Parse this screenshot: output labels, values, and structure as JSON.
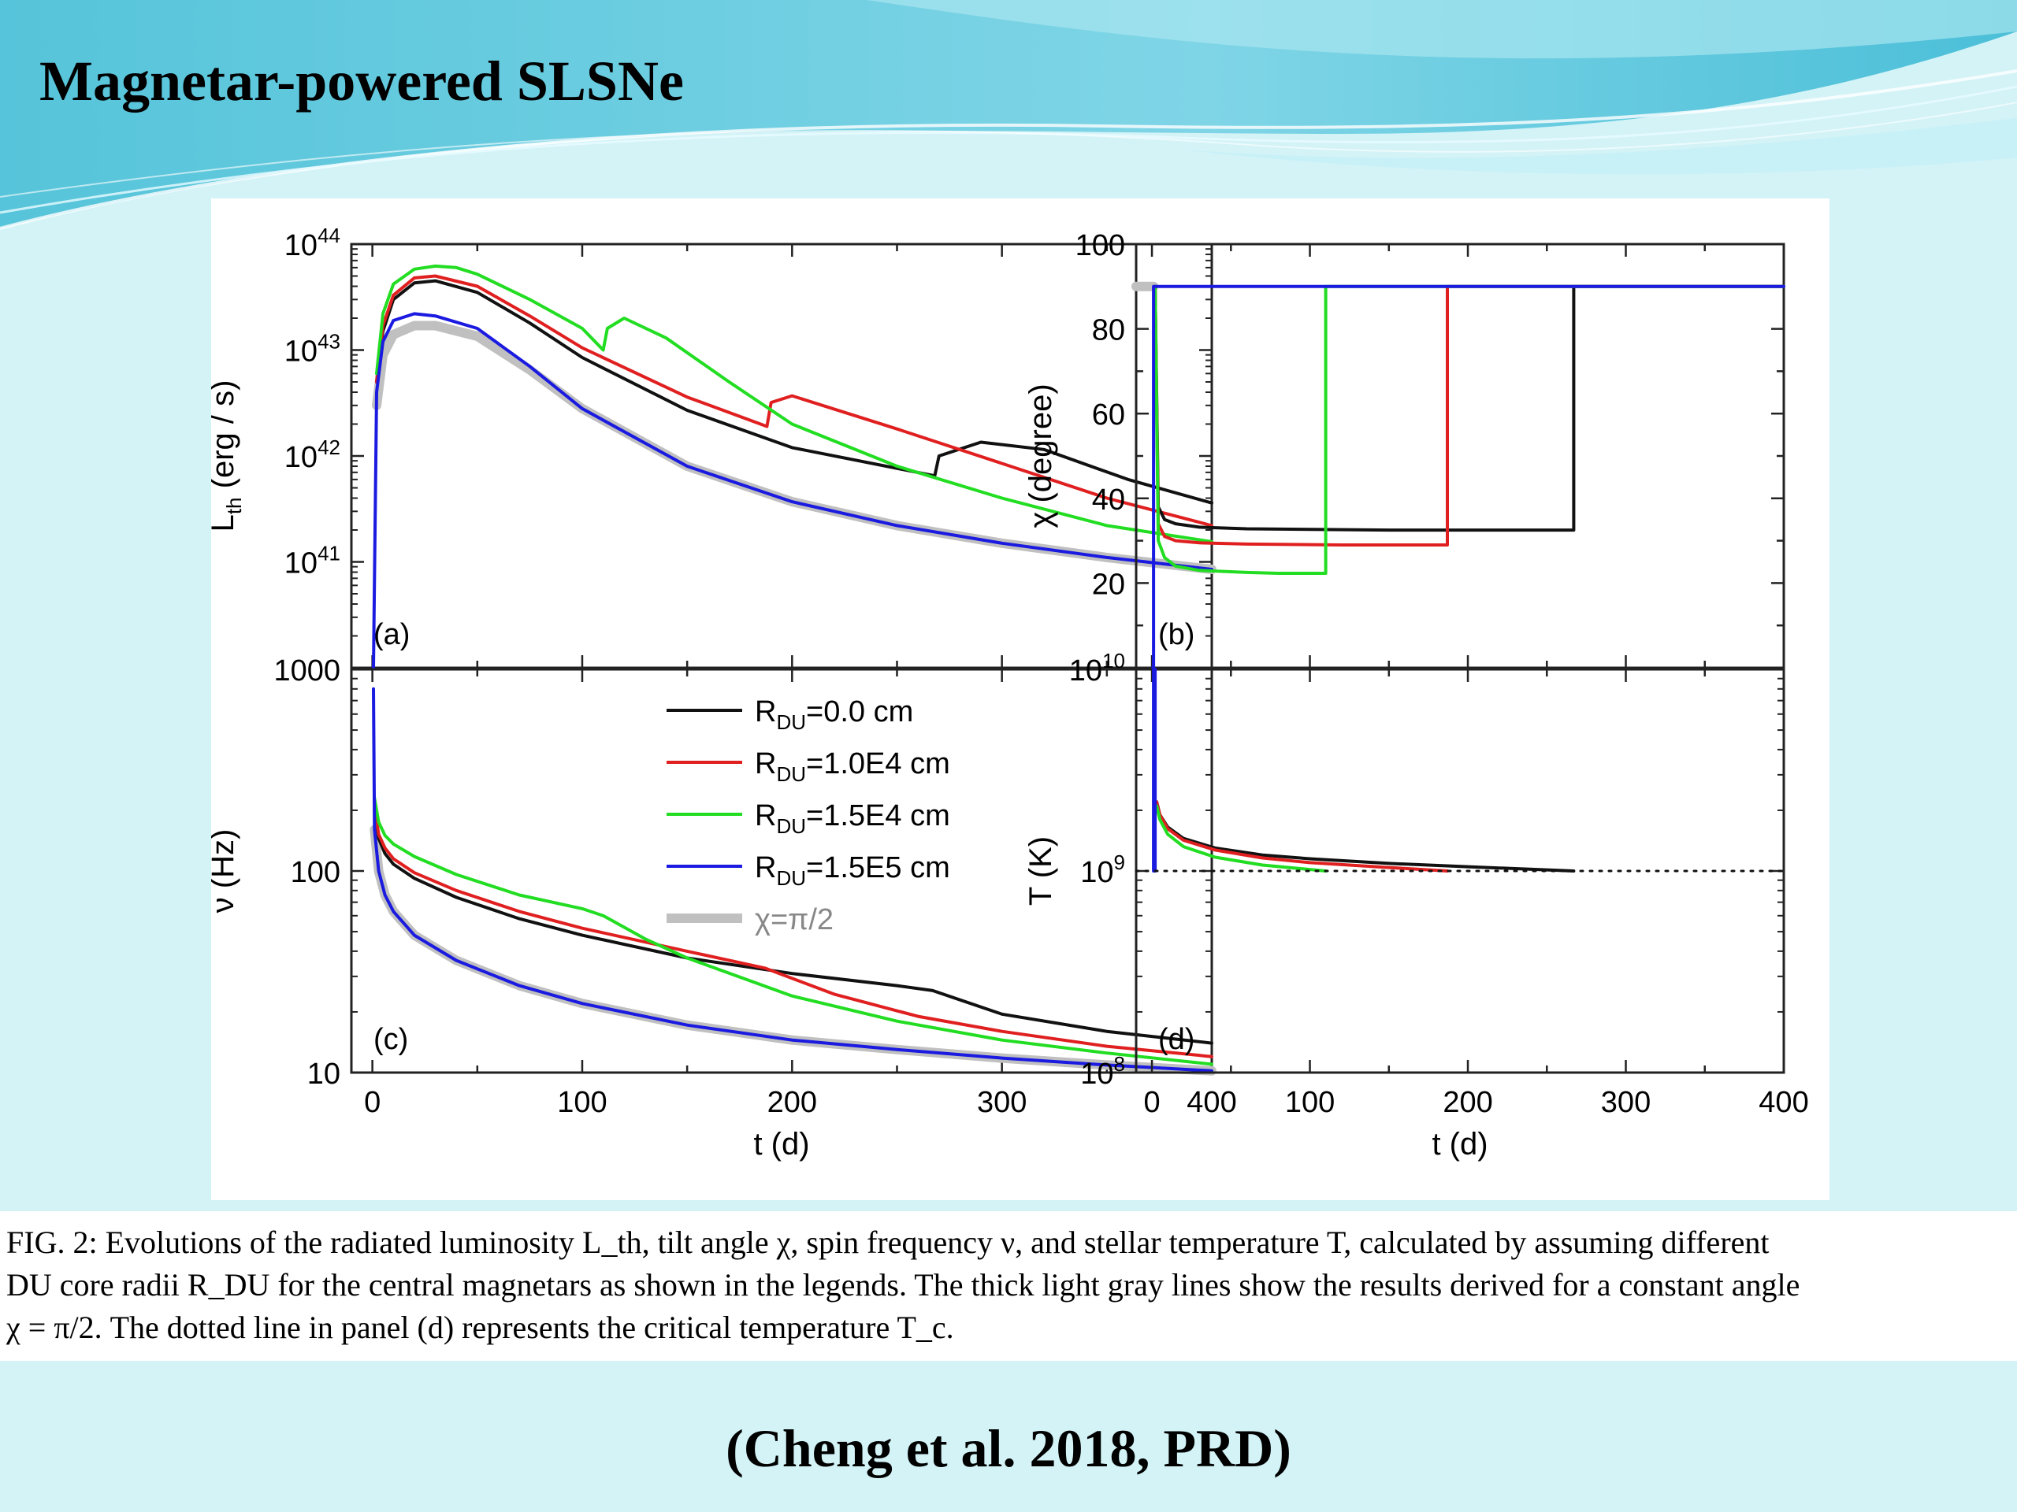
{
  "slide": {
    "title": "Magnetar-powered SLSNe",
    "citation": "(Cheng et al. 2018, PRD)"
  },
  "caption": {
    "lines": [
      "FIG. 2: Evolutions of the radiated luminosity L_th, tilt angle χ, spin frequency ν, and stellar temperature T, calculated by assuming different",
      "DU core radii R_DU for the central magnetars as shown in the legends. The thick light gray lines show the results derived for a constant angle",
      "χ = π/2. The dotted line in panel (d) represents the critical temperature T_c."
    ]
  },
  "colors": {
    "R0": "#111111",
    "R1": "#e02020",
    "R2": "#22dd22",
    "R3": "#1a1ae0",
    "gray": "#c0c0c0",
    "banner": "#5ec8dc"
  },
  "chart_data": [
    {
      "panel": "(a)",
      "type": "line",
      "ylabel": "L_th (erg / s)",
      "xlabel": "",
      "xlim": [
        -10,
        400
      ],
      "yscale": "log",
      "ylim": [
        1e+40,
        1e+44
      ],
      "yticks": [
        "10^44",
        "10^43",
        "10^42",
        "10^41"
      ],
      "series": [
        {
          "name": "R_DU=0.0 cm",
          "color": "R0",
          "x": [
            2,
            5,
            10,
            20,
            30,
            50,
            75,
            100,
            150,
            200,
            268,
            270,
            290,
            320,
            360,
            400
          ],
          "y": [
            5e+42,
            1.5e+43,
            3e+43,
            4.3e+43,
            4.5e+43,
            3.5e+43,
            1.8e+43,
            8.5e+42,
            2.7e+42,
            1.2e+42,
            6.5e+41,
            1e+42,
            1.35e+42,
            1.15e+42,
            6e+41,
            3.6e+41
          ]
        },
        {
          "name": "R_DU=1.0E4 cm",
          "color": "R1",
          "x": [
            2,
            5,
            10,
            20,
            30,
            50,
            75,
            100,
            150,
            188,
            190,
            200,
            250,
            300,
            350,
            400
          ],
          "y": [
            5e+42,
            1.7e+43,
            3.3e+43,
            4.8e+43,
            5e+43,
            4e+43,
            2.1e+43,
            1.05e+43,
            3.6e+42,
            1.9e+42,
            3.2e+42,
            3.7e+42,
            1.8e+42,
            8.5e+41,
            4e+41,
            2.2e+41
          ]
        },
        {
          "name": "R_DU=1.5E4 cm",
          "color": "R2",
          "x": [
            2,
            5,
            10,
            20,
            30,
            40,
            50,
            75,
            100,
            110,
            112,
            120,
            140,
            170,
            200,
            250,
            300,
            350,
            400
          ],
          "y": [
            6e+42,
            2.2e+43,
            4.2e+43,
            5.8e+43,
            6.2e+43,
            6e+43,
            5.2e+43,
            3e+43,
            1.6e+43,
            1e+43,
            1.6e+43,
            2e+43,
            1.3e+43,
            5e+42,
            2e+42,
            8e+41,
            4e+41,
            2.2e+41,
            1.55e+41
          ]
        },
        {
          "name": "R_DU=1.5E5 cm",
          "color": "R3",
          "x": [
            0.5,
            2,
            5,
            10,
            20,
            30,
            50,
            75,
            100,
            150,
            200,
            250,
            300,
            350,
            400
          ],
          "y": [
            1e+40,
            4e+42,
            1.2e+43,
            1.9e+43,
            2.2e+43,
            2.1e+43,
            1.6e+43,
            7e+42,
            2.8e+42,
            8e+41,
            3.7e+41,
            2.2e+41,
            1.5e+41,
            1.1e+41,
            8.5e+40
          ]
        },
        {
          "name": "χ=π/2",
          "color": "gray",
          "x": [
            2,
            5,
            10,
            20,
            30,
            50,
            75,
            100,
            150,
            200,
            250,
            300,
            350,
            400
          ],
          "y": [
            3e+42,
            9e+42,
            1.4e+43,
            1.7e+43,
            1.7e+43,
            1.35e+43,
            6.5e+42,
            2.8e+42,
            8e+41,
            3.7e+41,
            2.2e+41,
            1.5e+41,
            1.1e+41,
            8.5e+40
          ]
        }
      ]
    },
    {
      "panel": "(b)",
      "type": "line",
      "ylabel": "χ (degree)",
      "xlabel": "",
      "xlim": [
        -10,
        400
      ],
      "ylim": [
        0,
        100
      ],
      "yticks": [
        20,
        40,
        60,
        80,
        100
      ],
      "series": [
        {
          "name": "R_DU=0.0 cm",
          "color": "R0",
          "x": [
            2,
            4,
            8,
            15,
            30,
            60,
            150,
            267,
            267,
            400
          ],
          "y": [
            90,
            38,
            35,
            34,
            33.2,
            32.8,
            32.5,
            32.5,
            90,
            90
          ]
        },
        {
          "name": "R_DU=1.0E4 cm",
          "color": "R1",
          "x": [
            2,
            4,
            8,
            15,
            30,
            60,
            120,
            187,
            187,
            400
          ],
          "y": [
            90,
            34,
            31,
            30,
            29.5,
            29.2,
            29,
            29,
            90,
            90
          ]
        },
        {
          "name": "R_DU=1.5E4 cm",
          "color": "R2",
          "x": [
            2,
            4,
            8,
            15,
            30,
            60,
            80,
            110,
            110,
            400
          ],
          "y": [
            90,
            30,
            26,
            24,
            23,
            22.5,
            22.3,
            22.3,
            90,
            90
          ]
        },
        {
          "name": "R_DU=1.5E5 cm",
          "color": "R3",
          "x": [
            0.5,
            1,
            1,
            400
          ],
          "y": [
            0,
            0,
            90,
            90
          ]
        },
        {
          "name": "χ=π/2",
          "color": "gray",
          "x": [
            -10,
            1
          ],
          "y": [
            90,
            90
          ]
        }
      ]
    },
    {
      "panel": "(c)",
      "type": "line",
      "ylabel": "ν (Hz)",
      "xlabel": "t (d)",
      "xlim": [
        -10,
        400
      ],
      "xticks": [
        0,
        100,
        200,
        300,
        400
      ],
      "yscale": "log",
      "ylim": [
        10,
        1000
      ],
      "yticks": [
        1000,
        100,
        10
      ],
      "legend": {
        "placement": "top-right",
        "entries": [
          {
            "prefix": "R",
            "sub": "DU",
            "suffix": "=0.0 cm",
            "color": "R0"
          },
          {
            "prefix": "R",
            "sub": "DU",
            "suffix": "=1.0E4 cm",
            "color": "R1"
          },
          {
            "prefix": "R",
            "sub": "DU",
            "suffix": "=1.5E4 cm",
            "color": "R2"
          },
          {
            "prefix": "R",
            "sub": "DU",
            "suffix": "=1.5E5 cm",
            "color": "R3"
          },
          {
            "prefix": "χ=π/2",
            "sub": "",
            "suffix": "",
            "color": "gray"
          }
        ]
      },
      "series": [
        {
          "name": "R_DU=0.0 cm",
          "color": "R0",
          "x": [
            1,
            3,
            6,
            10,
            20,
            40,
            70,
            100,
            150,
            200,
            250,
            267,
            300,
            350,
            400
          ],
          "y": [
            200,
            145,
            122,
            108,
            92,
            74,
            58,
            48,
            37,
            31,
            27,
            25.5,
            19.5,
            16,
            14
          ]
        },
        {
          "name": "R_DU=1.0E4 cm",
          "color": "R1",
          "x": [
            1,
            3,
            6,
            10,
            20,
            40,
            70,
            100,
            150,
            187,
            220,
            260,
            300,
            350,
            400
          ],
          "y": [
            210,
            152,
            130,
            115,
            98,
            80,
            63,
            52,
            40,
            33,
            24.5,
            19,
            16,
            13.5,
            12
          ]
        },
        {
          "name": "R_DU=1.5E4 cm",
          "color": "R2",
          "x": [
            1,
            3,
            6,
            10,
            20,
            40,
            70,
            100,
            110,
            130,
            150,
            200,
            250,
            300,
            350,
            400
          ],
          "y": [
            230,
            175,
            150,
            136,
            118,
            96,
            76,
            65,
            60,
            46,
            37,
            24,
            18,
            14.5,
            12.5,
            11
          ]
        },
        {
          "name": "R_DU=1.5E5 cm",
          "color": "R3",
          "x": [
            0.5,
            1,
            3,
            6,
            10,
            20,
            40,
            70,
            100,
            150,
            200,
            250,
            300,
            350,
            400
          ],
          "y": [
            800,
            160,
            100,
            76,
            63,
            48,
            36,
            27,
            22,
            17.2,
            14.5,
            13,
            11.8,
            10.9,
            10.2
          ]
        },
        {
          "name": "χ=π/2",
          "color": "gray",
          "x": [
            1,
            3,
            6,
            10,
            20,
            40,
            70,
            100,
            150,
            200,
            250,
            300,
            350,
            400
          ],
          "y": [
            160,
            100,
            76,
            63,
            48,
            36,
            27,
            22,
            17.2,
            14.5,
            13,
            11.8,
            10.9,
            10.2
          ]
        }
      ]
    },
    {
      "panel": "(d)",
      "type": "line",
      "ylabel": "T (K)",
      "xlabel": "t (d)",
      "xlim": [
        -10,
        400
      ],
      "xticks": [
        0,
        100,
        200,
        300,
        400
      ],
      "yscale": "log",
      "ylim": [
        100000000.0,
        10000000000.0
      ],
      "yticks": [
        "10^10",
        "10^9",
        "10^8"
      ],
      "series": [
        {
          "name": "R_DU=0.0 cm",
          "color": "R0",
          "x": [
            3,
            5,
            10,
            20,
            40,
            70,
            100,
            150,
            200,
            267
          ],
          "y": [
            2200000000.0,
            1900000000.0,
            1650000000.0,
            1450000000.0,
            1300000000.0,
            1200000000.0,
            1150000000.0,
            1090000000.0,
            1050000000.0,
            1000000000.0
          ]
        },
        {
          "name": "R_DU=1.0E4 cm",
          "color": "R1",
          "x": [
            3,
            5,
            10,
            20,
            40,
            70,
            100,
            150,
            187
          ],
          "y": [
            2200000000.0,
            1900000000.0,
            1620000000.0,
            1420000000.0,
            1270000000.0,
            1160000000.0,
            1100000000.0,
            1040000000.0,
            1000000000.0
          ]
        },
        {
          "name": "R_DU=1.5E4 cm",
          "color": "R2",
          "x": [
            3,
            5,
            10,
            20,
            40,
            70,
            110
          ],
          "y": [
            2100000000.0,
            1800000000.0,
            1520000000.0,
            1320000000.0,
            1170000000.0,
            1070000000.0,
            1000000000.0
          ]
        },
        {
          "name": "R_DU=1.5E5 cm",
          "color": "R3",
          "x": [
            1,
            1,
            2,
            2
          ],
          "y": [
            10000000000.0,
            1000000000.0,
            1000000000.0,
            10000000000.0
          ]
        },
        {
          "name": "T_c",
          "color": "R0",
          "dotted": true,
          "x": [
            -10,
            400
          ],
          "y": [
            1000000000.0,
            1000000000.0
          ]
        }
      ]
    }
  ]
}
